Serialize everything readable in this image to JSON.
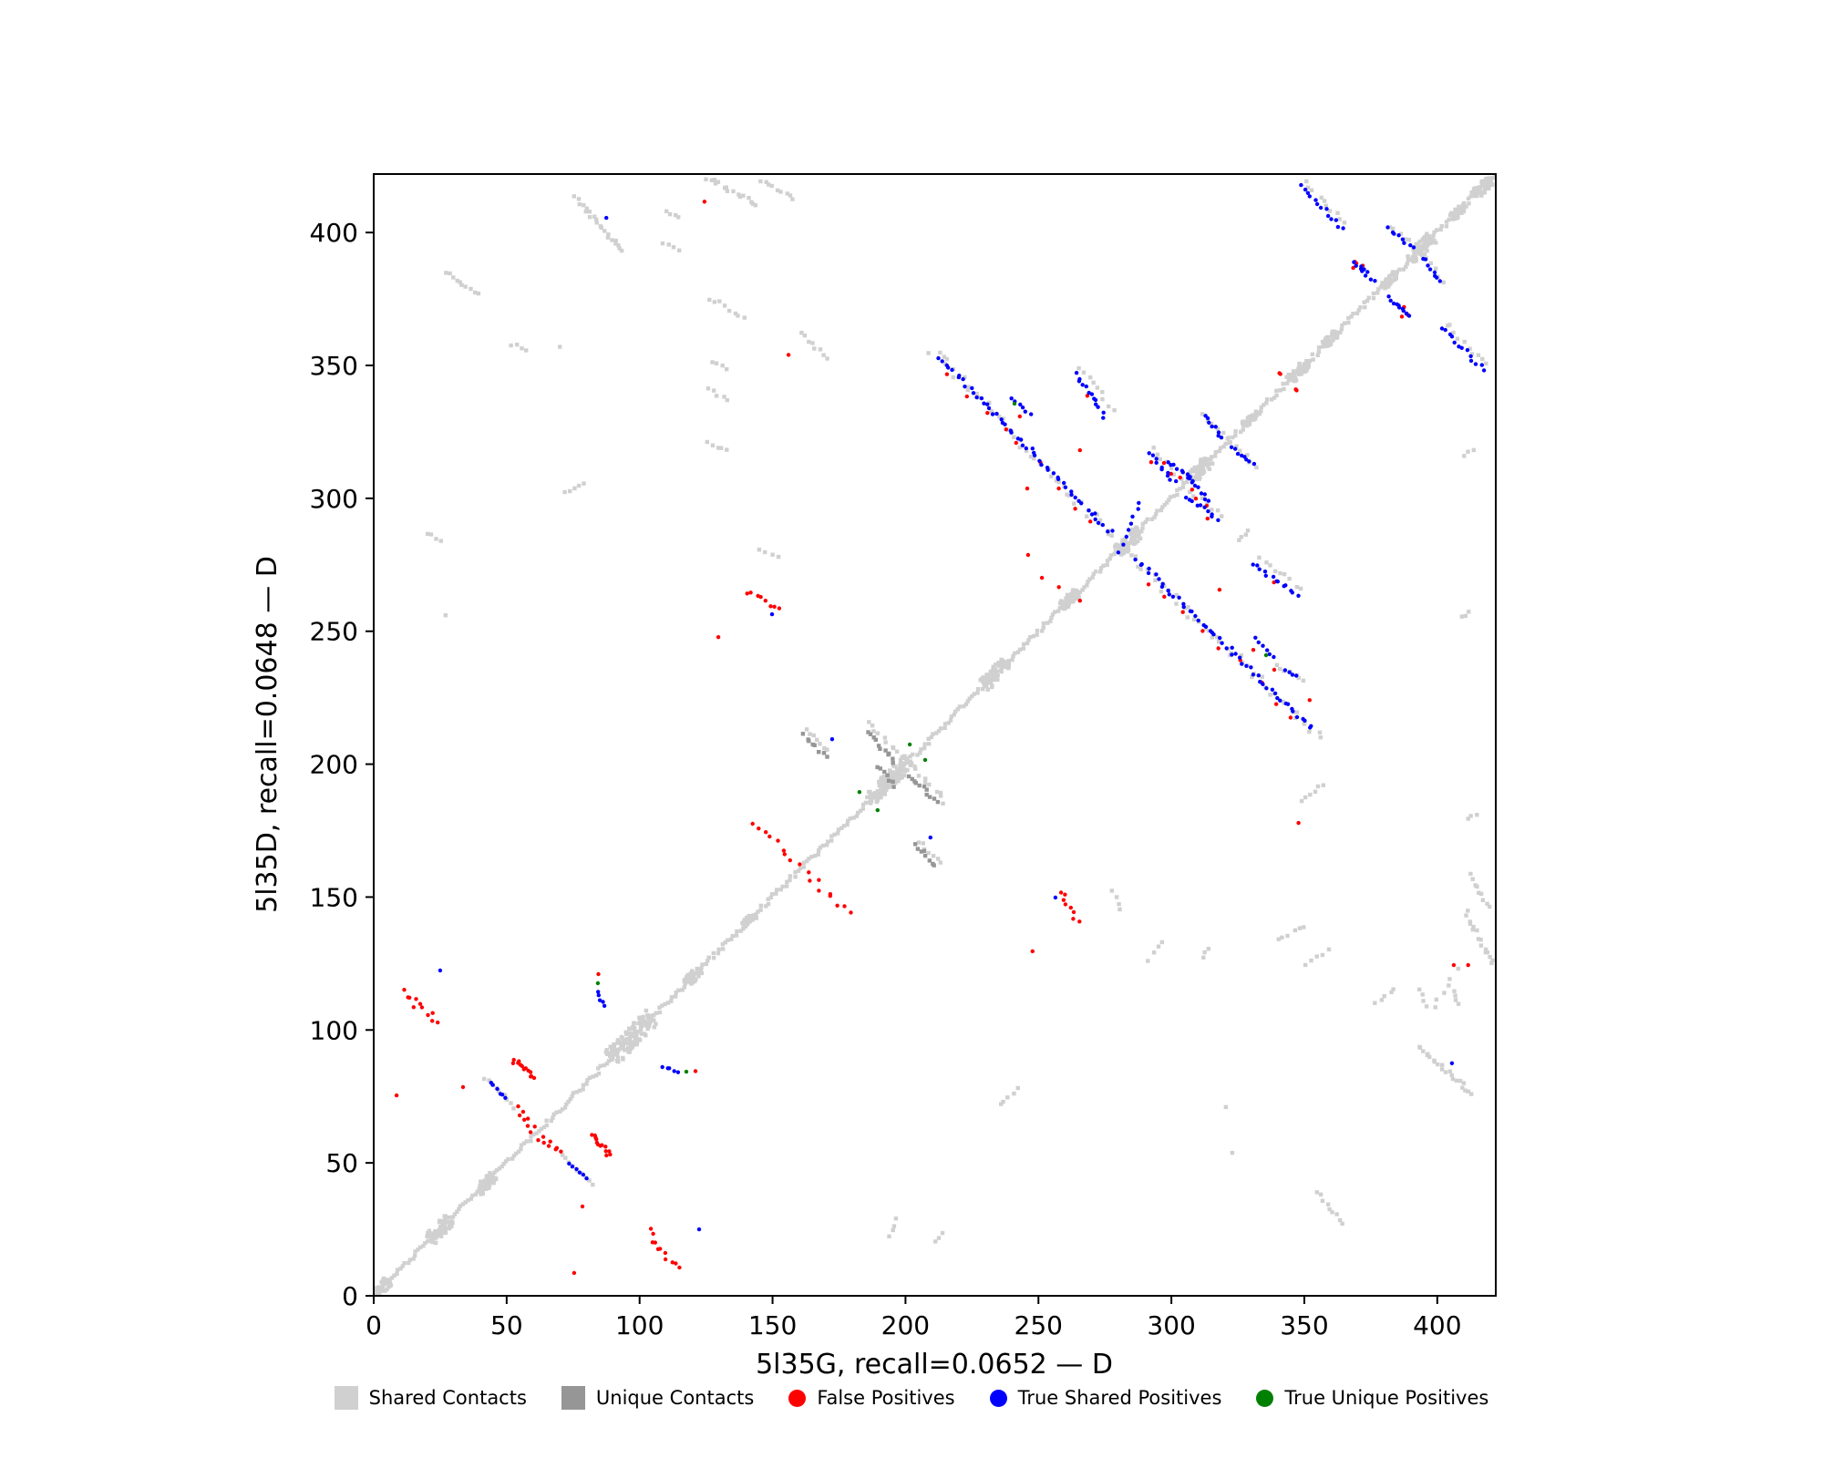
{
  "chart_data": {
    "type": "scatter",
    "title": "",
    "xlabel": "5l35G, recall=0.0652 — D",
    "ylabel": "5l35D, recall=0.0648 — D",
    "xlim": [
      0,
      422
    ],
    "ylim": [
      0,
      422
    ],
    "xticks": [
      0,
      50,
      100,
      150,
      200,
      250,
      300,
      350,
      400
    ],
    "yticks": [
      0,
      50,
      100,
      150,
      200,
      250,
      300,
      350,
      400
    ],
    "grid": false,
    "axis_color": "#000000",
    "background": "#ffffff",
    "classes": {
      "shared": {
        "label": "Shared Contacts",
        "color": "#d0d0d0",
        "marker": "square"
      },
      "unique": {
        "label": "Unique Contacts",
        "color": "#969696",
        "marker": "square"
      },
      "fp": {
        "label": "False Positives",
        "color": "#ff0000",
        "marker": "circle"
      },
      "tsp": {
        "label": "True Shared Positives",
        "color": "#0000ff",
        "marker": "circle"
      },
      "tup": {
        "label": "True Unique Positives",
        "color": "#008000",
        "marker": "circle"
      }
    },
    "legend": {
      "position": "bottom-center",
      "entries": [
        {
          "key": "shared",
          "label": "Shared Contacts"
        },
        {
          "key": "unique",
          "label": "Unique Contacts"
        },
        {
          "key": "fp",
          "label": "False Positives"
        },
        {
          "key": "tsp",
          "label": "True Shared Positives"
        },
        {
          "key": "tup",
          "label": "True Unique Positives"
        }
      ]
    },
    "diagonal_band": {
      "class": "shared",
      "from": 0,
      "to": 422,
      "step": 0.85,
      "jitter": 1.8,
      "blobs": [
        [
          3,
          6,
          2
        ],
        [
          25,
          8,
          2.5
        ],
        [
          42,
          6,
          2
        ],
        [
          97,
          16,
          3.5
        ],
        [
          120,
          5,
          1.8
        ],
        [
          141,
          4,
          1.5
        ],
        [
          190,
          8,
          2.5
        ],
        [
          197,
          9,
          2.8
        ],
        [
          234,
          9,
          2.5
        ],
        [
          262,
          6,
          2
        ],
        [
          284,
          8,
          2.5
        ],
        [
          311,
          8,
          2.5
        ],
        [
          330,
          5,
          1.5
        ],
        [
          348,
          7,
          2
        ],
        [
          360,
          5,
          1.5
        ],
        [
          382,
          5,
          1.5
        ],
        [
          394,
          8,
          2.5
        ],
        [
          408,
          5,
          1.5
        ],
        [
          417,
          6,
          2
        ]
      ]
    },
    "streaks": [
      [
        "sh",
        76,
        413,
        94,
        393,
        22,
        1.5,
        1
      ],
      [
        "sh",
        125,
        421,
        144,
        411,
        16,
        2.2,
        1
      ],
      [
        "sh",
        146,
        419,
        158,
        413,
        9,
        1.6,
        1
      ],
      [
        "sh",
        110,
        408,
        115,
        406,
        4,
        1,
        1
      ],
      [
        "sh",
        109,
        396,
        115,
        393,
        4,
        1,
        1
      ],
      [
        "sh",
        27,
        385,
        39,
        377,
        10,
        1.3,
        0
      ],
      [
        "sh",
        354.8,
        39.1,
        364.4,
        27.1,
        9,
        1.3,
        0
      ],
      [
        "sh",
        52,
        358,
        57,
        356,
        4,
        1,
        0
      ],
      [
        "sh",
        126,
        375,
        132,
        373,
        4,
        1,
        0
      ],
      [
        "sh",
        134,
        371,
        139,
        368,
        4,
        1,
        0
      ],
      [
        "sh",
        127,
        351,
        133,
        349,
        4,
        1,
        0
      ],
      [
        "sh",
        126,
        341,
        133,
        337,
        5,
        1.2,
        0
      ],
      [
        "sh",
        126,
        321,
        133,
        318,
        5,
        1.2,
        0
      ],
      [
        "sh",
        72,
        302,
        79,
        306,
        5,
        1,
        0
      ],
      [
        "sh",
        325.6,
        284.2,
        329.1,
        287.9,
        4,
        1,
        0
      ],
      [
        "sh",
        20,
        287,
        25,
        284,
        4,
        1,
        0
      ],
      [
        "fp",
        141,
        265,
        152,
        258,
        8,
        2,
        1
      ],
      [
        "sh",
        145,
        281,
        152,
        278,
        4,
        1,
        1
      ],
      [
        "sh",
        161,
        362,
        170,
        353,
        8,
        1.3,
        0
      ],
      [
        "sh",
        349.6,
        186,
        356.5,
        192.6,
        6,
        1.4,
        0
      ],
      [
        "fp",
        11,
        114,
        24,
        103,
        11,
        2.6,
        1
      ],
      [
        "fp",
        53,
        89,
        61,
        82,
        7,
        1.6,
        1
      ],
      [
        "tsp",
        44,
        80,
        50,
        74,
        6,
        1.1,
        1
      ],
      [
        "sh",
        42,
        82,
        53,
        71,
        9,
        1.1,
        1
      ],
      [
        "fp",
        55,
        68,
        59,
        62,
        4,
        1,
        1
      ],
      [
        "fp",
        64,
        60,
        71,
        54,
        4,
        1.2,
        1
      ],
      [
        "fp",
        83,
        60,
        88,
        53,
        6,
        1.5,
        1
      ],
      [
        "tsp",
        109,
        86.5,
        114,
        84,
        5,
        1,
        1
      ],
      [
        "un",
        201,
        196,
        212,
        186,
        11,
        1.6,
        1
      ],
      [
        "un",
        203,
        170,
        211,
        162,
        8,
        1.6,
        1
      ],
      [
        "un",
        189,
        199,
        196,
        192,
        7,
        1.5,
        0
      ],
      [
        "sh",
        186,
        215,
        199,
        203,
        10,
        2,
        1
      ],
      [
        "sh",
        163,
        213,
        171,
        205,
        7,
        1.2,
        1
      ],
      [
        "fp",
        144,
        178,
        159,
        163,
        9,
        3,
        1
      ],
      [
        "sh",
        210,
        356,
        280,
        283,
        46,
        3,
        1
      ],
      [
        "tsp",
        213,
        353,
        277,
        287,
        52,
        1.8,
        1
      ],
      [
        "fp",
        218,
        347,
        268,
        291,
        9,
        5,
        1
      ],
      [
        "tsp",
        264,
        347,
        275,
        331,
        13,
        1.6,
        1
      ],
      [
        "sh",
        266,
        349,
        278,
        333,
        9,
        2,
        1
      ],
      [
        "tsp",
        292,
        317,
        301,
        306,
        10,
        1.5,
        1
      ],
      [
        "sh",
        293,
        319,
        303,
        307,
        7,
        2,
        1
      ],
      [
        "tsp",
        306.5,
        308,
        314,
        299,
        9,
        1.4,
        1
      ],
      [
        "tsp",
        313,
        331,
        319,
        323,
        8,
        1.3,
        1
      ],
      [
        "sh",
        312,
        332,
        321,
        322,
        6,
        1.5,
        1
      ],
      [
        "tsp",
        280.5,
        280,
        288,
        298,
        8,
        1.2,
        0
      ],
      [
        "tsp",
        332,
        247,
        338,
        240,
        6,
        1.2,
        1
      ],
      [
        "sh",
        340,
        237,
        350,
        231,
        8,
        1.6,
        0
      ],
      [
        "tsp",
        343,
        235.5,
        347.5,
        233,
        4,
        1,
        0
      ],
      [
        "tsp",
        348.5,
        417.5,
        364.3,
        401.4,
        13,
        1.6,
        1
      ],
      [
        "sh",
        350,
        419,
        366,
        403,
        10,
        2.2,
        1
      ],
      [
        "tsp",
        381.4,
        401.4,
        390.7,
        394.6,
        8,
        1.4,
        1
      ],
      [
        "sh",
        382,
        402.5,
        392,
        395,
        6,
        1.6,
        1
      ],
      [
        "tsp",
        370.8,
        386.7,
        376.3,
        381.5,
        5,
        1.1,
        1
      ],
      [
        "tsp",
        384.6,
        373.3,
        389,
        368.8,
        5,
        1.1,
        1
      ],
      [
        "sh",
        291.3,
        126.5,
        296.5,
        133.3,
        4,
        1.1,
        0
      ],
      [
        "sh",
        311.9,
        126.8,
        313.6,
        131,
        3,
        1,
        0
      ],
      [
        "sh",
        340,
        134.4,
        350.3,
        138.5,
        6,
        1.3,
        0
      ],
      [
        "sh",
        350.7,
        124.8,
        358.9,
        130.2,
        5,
        1.3,
        0
      ],
      [
        "sh",
        377,
        109.7,
        384,
        115.5,
        5,
        1.2,
        0
      ],
      [
        "sh",
        398.6,
        109.3,
        406.9,
        122.4,
        6,
        2,
        0
      ],
      [
        "sh",
        235.5,
        72,
        242.3,
        77.8,
        5,
        1.2,
        0
      ],
      [
        "sh",
        194.3,
        22.3,
        196.4,
        28.8,
        4,
        1.1,
        0
      ],
      [
        "sh",
        210.8,
        20.2,
        213.6,
        24,
        3,
        1,
        0
      ],
      [
        "sh",
        410.3,
        316,
        413.7,
        318.4,
        3,
        1,
        0
      ],
      [
        "sh",
        409.6,
        255.3,
        412.3,
        257.1,
        3,
        1,
        0
      ],
      [
        "sh",
        411.3,
        179.6,
        414.7,
        181.3,
        3,
        1,
        0
      ]
    ],
    "extra_points": [
      [
        "tsp",
        87.5,
        405.5,
        1
      ],
      [
        "fp",
        124.4,
        411.6,
        1
      ],
      [
        "sh",
        70,
        357,
        0
      ],
      [
        "sh",
        27,
        256,
        0
      ],
      [
        "tsp",
        149.8,
        256.4,
        1
      ],
      [
        "fp",
        129.6,
        247.8,
        1
      ],
      [
        "fp",
        156,
        354,
        0
      ],
      [
        "tsp",
        25,
        122.4,
        1
      ],
      [
        "fp",
        8.6,
        75.4,
        1
      ],
      [
        "fp",
        33.6,
        78.5,
        1
      ],
      [
        "tup",
        117.6,
        84.3,
        1
      ],
      [
        "fp",
        121,
        84.5,
        1
      ],
      [
        "tup",
        201.6,
        207.4,
        1
      ],
      [
        "tup",
        182.7,
        189.5,
        1
      ],
      [
        "tsp",
        172.4,
        209.4,
        1
      ],
      [
        "fp",
        268.4,
        338.6,
        1
      ],
      [
        "fp",
        265.6,
        318.1,
        1
      ],
      [
        "fp",
        292.4,
        313.6,
        1
      ],
      [
        "fp",
        297.2,
        313.3,
        1
      ],
      [
        "fp",
        307.8,
        303.3,
        1
      ],
      [
        "fp",
        309.2,
        299.9,
        1
      ],
      [
        "tup",
        335.6,
        241,
        1
      ],
      [
        "fp",
        330.8,
        243,
        1
      ],
      [
        "fp",
        338.7,
        235.5,
        0
      ],
      [
        "fp",
        347.8,
        177.9,
        0
      ],
      [
        "fp",
        352,
        224.1,
        0
      ],
      [
        "fp",
        369,
        389,
        1
      ],
      [
        "fp",
        372,
        387.5,
        1
      ],
      [
        "fp",
        388.4,
        369.6,
        1
      ],
      [
        "fp",
        386.7,
        368.4,
        1
      ],
      [
        "fp",
        341,
        346.8,
        1
      ],
      [
        "fp",
        347.1,
        340.6,
        1
      ],
      [
        "fp",
        406.2,
        124.4,
        0
      ],
      [
        "sh",
        320.5,
        71,
        0
      ],
      [
        "sh",
        322.9,
        53.8,
        0
      ],
      [
        "fp",
        245.8,
        303.7,
        0
      ],
      [
        "fp",
        246.1,
        278.7,
        0
      ],
      [
        "fp",
        251.3,
        270.1,
        0
      ],
      [
        "fp",
        257.7,
        266.6,
        0
      ],
      [
        "fp",
        265.6,
        261.5,
        0
      ]
    ]
  }
}
